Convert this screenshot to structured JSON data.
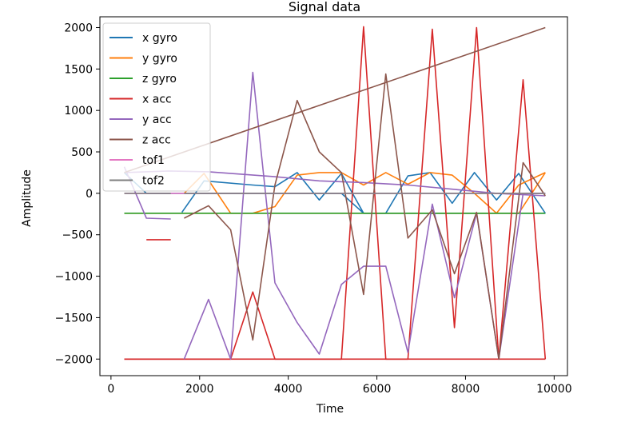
{
  "chart_data": {
    "type": "line",
    "title": "Signal data",
    "xlabel": "Time",
    "ylabel": "Amplitude",
    "xlim": [
      -250,
      10300
    ],
    "ylim": [
      -2200,
      2130
    ],
    "xticks": [
      0,
      2000,
      4000,
      6000,
      8000,
      10000
    ],
    "xtick_labels": [
      "0",
      "2000",
      "4000",
      "6000",
      "8000",
      "10000"
    ],
    "yticks": [
      -2000,
      -1500,
      -1000,
      -500,
      0,
      500,
      1000,
      1500,
      2000
    ],
    "ytick_labels": [
      "−2000",
      "−1500",
      "−1000",
      "−500",
      "0",
      "500",
      "1000",
      "1500",
      "2000"
    ],
    "grid": false,
    "legend_position": "upper-left",
    "series": [
      {
        "name": "x gyro",
        "color": "#1f77b4",
        "segments": [
          [
            [
              300,
              250
            ],
            [
              800,
              0
            ],
            [
              1300,
              0
            ],
            [
              1700,
              0
            ],
            [
              2200,
              0
            ],
            [
              2700,
              0
            ],
            [
              3200,
              0
            ],
            [
              3700,
              0
            ],
            [
              4200,
              0
            ],
            [
              4700,
              0
            ],
            [
              5200,
              0
            ],
            [
              5700,
              -240
            ],
            [
              6200,
              -240
            ],
            [
              6700,
              -240
            ],
            [
              7200,
              -240
            ],
            [
              7700,
              -240
            ],
            [
              8200,
              -240
            ],
            [
              8700,
              -240
            ],
            [
              9200,
              -240
            ],
            [
              9800,
              -240
            ]
          ],
          [
            [
              1600,
              -230
            ],
            [
              2100,
              150
            ],
            [
              3200,
              100
            ],
            [
              3700,
              80
            ],
            [
              4200,
              250
            ],
            [
              4700,
              -80
            ],
            [
              5200,
              240
            ],
            [
              5700,
              -240
            ],
            [
              6200,
              -240
            ],
            [
              6700,
              210
            ],
            [
              7200,
              250
            ],
            [
              7700,
              -120
            ],
            [
              8200,
              250
            ],
            [
              8700,
              -80
            ],
            [
              9200,
              240
            ],
            [
              9800,
              -240
            ]
          ]
        ]
      },
      {
        "name": "y gyro",
        "color": "#ff7f0e",
        "segments": [
          [
            [
              300,
              -240
            ],
            [
              800,
              -240
            ],
            [
              1300,
              -240
            ],
            [
              1700,
              -240
            ],
            [
              2200,
              -240
            ],
            [
              2700,
              -240
            ],
            [
              3200,
              -240
            ],
            [
              3700,
              -240
            ],
            [
              4200,
              -240
            ],
            [
              4700,
              -240
            ],
            [
              5200,
              -240
            ],
            [
              5700,
              -240
            ],
            [
              6200,
              -240
            ],
            [
              6700,
              -240
            ],
            [
              7200,
              -240
            ],
            [
              7700,
              -240
            ],
            [
              8200,
              -240
            ],
            [
              8700,
              -240
            ],
            [
              9200,
              -240
            ],
            [
              9800,
              250
            ]
          ],
          [
            [
              1650,
              0
            ],
            [
              2100,
              240
            ],
            [
              2700,
              -240
            ],
            [
              3200,
              -240
            ],
            [
              3700,
              -160
            ],
            [
              4200,
              220
            ],
            [
              4700,
              250
            ],
            [
              5200,
              250
            ],
            [
              5700,
              100
            ],
            [
              6200,
              250
            ],
            [
              6700,
              110
            ],
            [
              7200,
              250
            ],
            [
              7700,
              220
            ],
            [
              8200,
              0
            ],
            [
              8700,
              -240
            ],
            [
              9200,
              100
            ],
            [
              9800,
              250
            ]
          ]
        ]
      },
      {
        "name": "z gyro",
        "color": "#2ca02c",
        "segments": [
          [
            [
              300,
              -240
            ],
            [
              800,
              -240
            ],
            [
              1300,
              -240
            ],
            [
              1800,
              -240
            ],
            [
              2300,
              -240
            ],
            [
              2800,
              -240
            ],
            [
              3300,
              -240
            ],
            [
              3800,
              -240
            ],
            [
              4300,
              -240
            ],
            [
              4800,
              -240
            ],
            [
              5300,
              -240
            ],
            [
              5800,
              -240
            ],
            [
              6300,
              -240
            ],
            [
              6800,
              -240
            ],
            [
              7300,
              -240
            ],
            [
              7800,
              -240
            ],
            [
              8300,
              -240
            ],
            [
              8800,
              -240
            ],
            [
              9300,
              -240
            ],
            [
              9800,
              -240
            ]
          ]
        ]
      },
      {
        "name": "x acc",
        "color": "#d62728",
        "segments": [
          [
            [
              800,
              -560
            ],
            [
              1350,
              -560
            ]
          ],
          [
            [
              300,
              -2000
            ],
            [
              1300,
              -2000
            ],
            [
              2300,
              -2000
            ],
            [
              2700,
              -2000
            ],
            [
              3200,
              -1190
            ],
            [
              3700,
              -2000
            ],
            [
              5200,
              -2000
            ],
            [
              5700,
              2010
            ],
            [
              6200,
              -2000
            ],
            [
              6700,
              -2000
            ],
            [
              7250,
              1980
            ],
            [
              7750,
              -1620
            ],
            [
              8250,
              2000
            ],
            [
              8750,
              -2000
            ],
            [
              9300,
              1370
            ],
            [
              9800,
              -2000
            ]
          ],
          [
            [
              300,
              -2000
            ],
            [
              9800,
              -2000
            ]
          ]
        ]
      },
      {
        "name": "y acc",
        "color": "#9467bd",
        "segments": [
          [
            [
              300,
              320
            ],
            [
              800,
              -300
            ],
            [
              1350,
              -310
            ]
          ],
          [
            [
              1650,
              -2000
            ],
            [
              2200,
              -1280
            ],
            [
              2700,
              -2000
            ],
            [
              3200,
              1460
            ],
            [
              3700,
              -1080
            ],
            [
              4200,
              -1560
            ],
            [
              4700,
              -1940
            ],
            [
              5200,
              -1100
            ],
            [
              5700,
              -880
            ],
            [
              6200,
              -880
            ],
            [
              6700,
              -1920
            ],
            [
              7250,
              -130
            ],
            [
              7750,
              -1260
            ],
            [
              8250,
              -240
            ],
            [
              8750,
              -2000
            ],
            [
              9300,
              0
            ],
            [
              9800,
              0
            ]
          ],
          [
            [
              300,
              250
            ],
            [
              1300,
              270
            ],
            [
              2200,
              260
            ],
            [
              3700,
              200
            ],
            [
              4700,
              150
            ],
            [
              5700,
              130
            ],
            [
              6700,
              100
            ],
            [
              7700,
              50
            ],
            [
              8700,
              0
            ],
            [
              9800,
              -30
            ]
          ]
        ]
      },
      {
        "name": "z acc",
        "color": "#8c564b",
        "segments": [
          [
            [
              300,
              250
            ],
            [
              9800,
              2000
            ]
          ],
          [
            [
              1650,
              -300
            ],
            [
              2200,
              -150
            ],
            [
              2700,
              -440
            ],
            [
              3200,
              -1770
            ],
            [
              3700,
              100
            ],
            [
              4200,
              1120
            ],
            [
              4700,
              500
            ],
            [
              5200,
              250
            ],
            [
              5700,
              -1220
            ],
            [
              6200,
              1440
            ],
            [
              6700,
              -540
            ],
            [
              7250,
              -200
            ],
            [
              7750,
              -970
            ],
            [
              8250,
              -230
            ],
            [
              8750,
              -2000
            ],
            [
              9300,
              370
            ],
            [
              9800,
              -30
            ]
          ]
        ]
      },
      {
        "name": "tof1",
        "color": "#e377c2",
        "segments": [
          [
            [
              300,
              0
            ],
            [
              9800,
              0
            ]
          ]
        ]
      },
      {
        "name": "tof2",
        "color": "#7f7f7f",
        "segments": [
          [
            [
              300,
              0
            ],
            [
              1350,
              0
            ]
          ],
          [
            [
              1650,
              0
            ],
            [
              9800,
              0
            ]
          ]
        ]
      }
    ]
  }
}
